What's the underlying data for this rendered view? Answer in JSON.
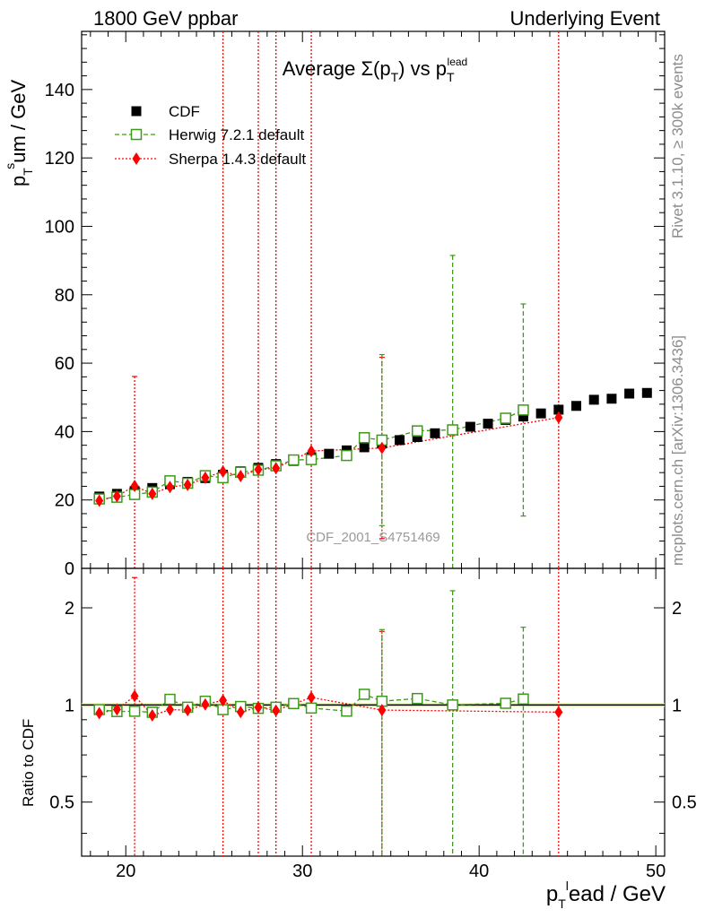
{
  "header": {
    "left": "1800 GeV ppbar",
    "right": "Underlying Event"
  },
  "side_labels": {
    "rivet": "Rivet 3.1.10, ≥ 300k events",
    "mcplots": "mcplots.cern.ch [arXiv:1306.3436]"
  },
  "watermark": "CDF_2001_S4751469",
  "axis_labels": {
    "y_top_main": "p",
    "y_top_sup": "s",
    "y_top_sub": "T",
    "y_top_rest": "um / GeV",
    "y_bottom": "Ratio to CDF",
    "x_main": "p",
    "x_sup": "l",
    "x_sub": "T",
    "x_rest": "ead / GeV"
  },
  "colors": {
    "cdf": "#000000",
    "herwig": "#3d9a1a",
    "sherpa": "#ff0000",
    "band": "#e6f5a8"
  },
  "chart_data": [
    {
      "type": "scatter",
      "title": "Average Σ(p_T) vs p_T^lead",
      "title_parts": {
        "a": "Average Σ(p",
        "b": "T",
        "c": ") vs p",
        "d": "T",
        "e": "lead"
      },
      "xlabel": "p_T^lead / GeV",
      "ylabel": "p_T^sum / GeV",
      "xlim": [
        17.5,
        50.5
      ],
      "ylim": [
        0,
        157
      ],
      "xticks": [
        20,
        30,
        40,
        50
      ],
      "yticks": [
        0,
        20,
        40,
        60,
        80,
        100,
        120,
        140
      ],
      "legend_position": "top-left",
      "series": [
        {
          "name": "CDF",
          "marker": "filled-square",
          "x": [
            18.5,
            19.5,
            20.5,
            21.5,
            22.5,
            23.5,
            24.5,
            25.5,
            26.5,
            27.5,
            28.5,
            29.5,
            30.5,
            31.5,
            32.5,
            33.5,
            34.5,
            35.5,
            36.5,
            37.5,
            38.5,
            39.5,
            40.5,
            41.5,
            42.5,
            43.5,
            44.5,
            45.5,
            46.5,
            47.5,
            48.5,
            49.5
          ],
          "y": [
            21.0,
            21.8,
            22.6,
            23.5,
            24.6,
            25.3,
            26.4,
            27.4,
            28.4,
            29.4,
            30.5,
            31.4,
            32.5,
            33.5,
            34.5,
            35.4,
            36.5,
            37.5,
            38.4,
            39.5,
            40.5,
            41.4,
            42.3,
            43.4,
            44.4,
            45.3,
            46.4,
            47.5,
            49.3,
            49.6,
            51.1,
            51.3
          ]
        },
        {
          "name": "Herwig 7.2.1 default",
          "marker": "open-square",
          "x": [
            18.5,
            19.5,
            20.5,
            21.5,
            22.5,
            23.5,
            24.5,
            25.5,
            26.5,
            27.5,
            28.5,
            29.5,
            30.5,
            32.5,
            33.5,
            34.5,
            36.5,
            38.5,
            41.5,
            42.5
          ],
          "y": [
            20.3,
            20.8,
            21.6,
            22.3,
            25.6,
            24.9,
            27.1,
            26.5,
            28.1,
            28.7,
            30.0,
            31.7,
            31.8,
            33.0,
            38.2,
            37.5,
            40.2,
            40.5,
            43.9,
            46.3
          ],
          "yerr": [
            0.8,
            0.8,
            0.8,
            0.8,
            0.8,
            0.8,
            0.8,
            0.8,
            0.8,
            0.8,
            0.8,
            0.8,
            0.8,
            0.8,
            0.8,
            25.0,
            0.8,
            51.0,
            0.8,
            31.0
          ]
        },
        {
          "name": "Sherpa 1.4.3 default",
          "marker": "filled-diamond",
          "x": [
            18.5,
            19.5,
            20.5,
            21.5,
            22.5,
            23.5,
            24.5,
            25.5,
            26.5,
            27.5,
            28.5,
            30.5,
            34.5,
            44.5
          ],
          "y": [
            19.8,
            21.1,
            24.1,
            21.8,
            23.8,
            24.4,
            26.5,
            28.3,
            27.0,
            28.9,
            29.3,
            34.3,
            35.2,
            44.1
          ],
          "yerr": [
            0.5,
            0.5,
            32.0,
            0.5,
            0.5,
            0.5,
            0.5,
            200.0,
            0.5,
            200.0,
            200.0,
            200.0,
            26.5,
            200.0
          ]
        }
      ]
    },
    {
      "type": "scatter",
      "ylabel": "Ratio to CDF",
      "xlim": [
        17.5,
        50.5
      ],
      "ylim": [
        0.34,
        2.65
      ],
      "yscale": "log",
      "yticks": [
        0.5,
        1,
        2
      ],
      "reference_line": 1,
      "series": [
        {
          "name": "Herwig 7.2.1 default",
          "x": [
            18.5,
            19.5,
            20.5,
            21.5,
            22.5,
            23.5,
            24.5,
            25.5,
            26.5,
            27.5,
            28.5,
            29.5,
            30.5,
            32.5,
            33.5,
            34.5,
            36.5,
            38.5,
            41.5,
            42.5
          ],
          "y": [
            0.967,
            0.954,
            0.956,
            0.949,
            1.041,
            0.984,
            1.027,
            0.967,
            0.989,
            0.976,
            0.984,
            1.01,
            0.978,
            0.957,
            1.079,
            1.027,
            1.047,
            1.0,
            1.012,
            1.043
          ]
        },
        {
          "name": "Sherpa 1.4.3 default",
          "x": [
            18.5,
            19.5,
            20.5,
            21.5,
            22.5,
            23.5,
            24.5,
            25.5,
            26.5,
            27.5,
            28.5,
            30.5,
            34.5,
            44.5
          ],
          "y": [
            0.943,
            0.968,
            1.066,
            0.928,
            0.967,
            0.964,
            1.004,
            1.033,
            0.951,
            0.983,
            0.961,
            1.055,
            0.964,
            0.95
          ]
        }
      ]
    }
  ]
}
